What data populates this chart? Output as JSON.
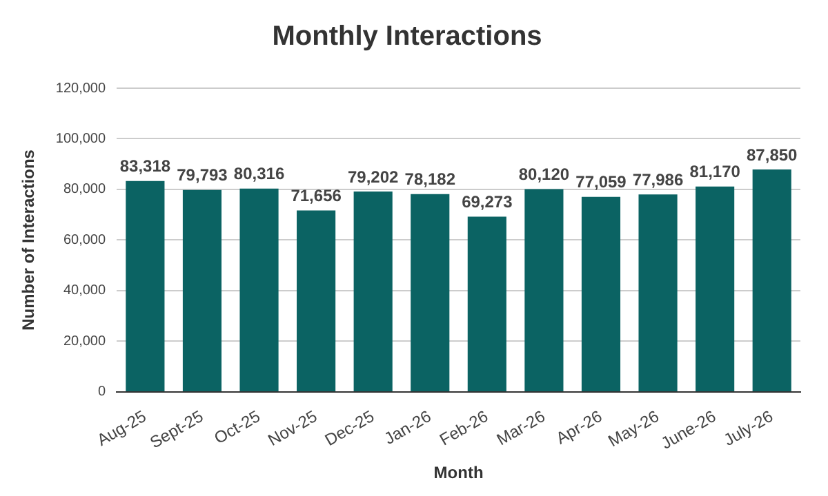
{
  "chart_data": {
    "type": "bar",
    "title": "Monthly Interactions",
    "xlabel": "Month",
    "ylabel": "Number of Interactions",
    "categories": [
      "Aug-25",
      "Sept-25",
      "Oct-25",
      "Nov-25",
      "Dec-25",
      "Jan-26",
      "Feb-26",
      "Mar-26",
      "Apr-26",
      "May-26",
      "June-26",
      "July-26"
    ],
    "values": [
      83318,
      79793,
      80316,
      71656,
      79202,
      78182,
      69273,
      80120,
      77059,
      77986,
      81170,
      87850
    ],
    "color": "#0b6363",
    "value_labels": [
      "83,318",
      "79,793",
      "80,316",
      "71,656",
      "79,202",
      "78,182",
      "69,273",
      "80,120",
      "77,059",
      "77,986",
      "81,170",
      "87,850"
    ],
    "ylim": [
      0,
      120000
    ],
    "yticks": [
      0,
      {
        "value": 20000,
        "label": "20,000"
      },
      {
        "value": 40000,
        "label": "40,000"
      },
      {
        "value": 60000,
        "label": "60,000"
      },
      {
        "value": 80000,
        "label": "80,000"
      },
      {
        "value": 100000,
        "label": "100,000"
      },
      {
        "value": 120000,
        "label": "120,000"
      }
    ],
    "grid": "y"
  }
}
